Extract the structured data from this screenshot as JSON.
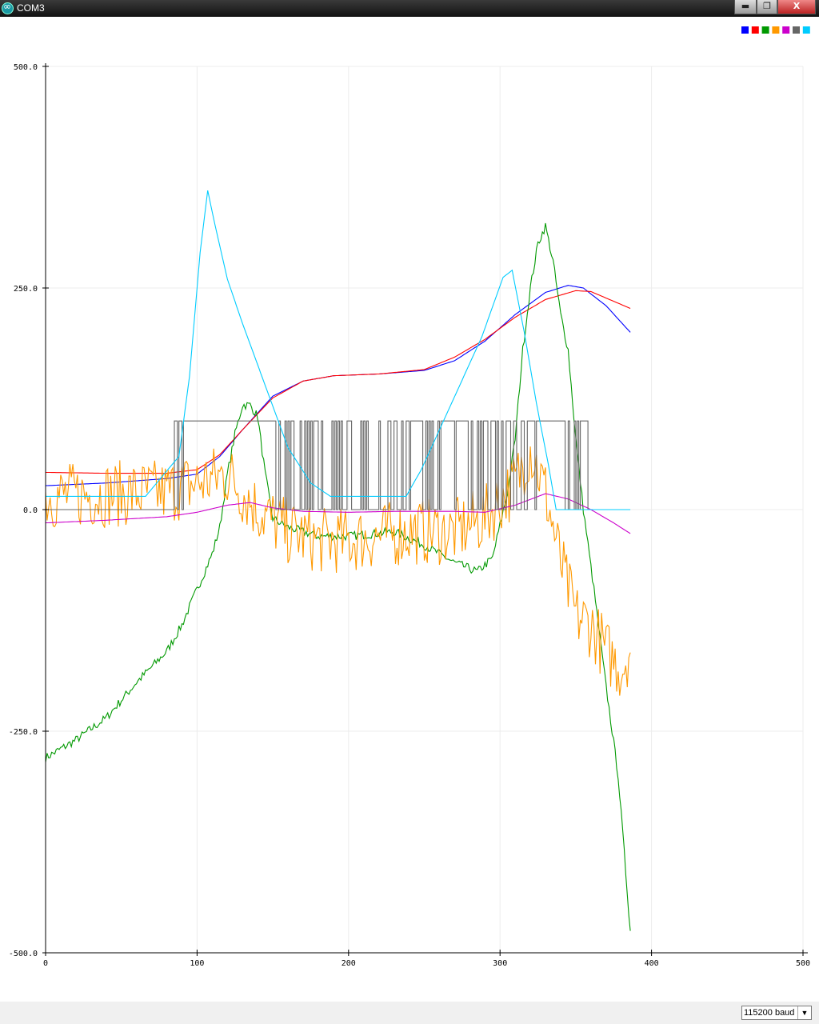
{
  "window": {
    "title": "COM3"
  },
  "title_buttons": {
    "minimize": "▬",
    "maximize": "❐",
    "close": "X"
  },
  "legend_colors": [
    "#0000ff",
    "#ff0000",
    "#009900",
    "#ff9900",
    "#cc00cc",
    "#666666",
    "#00ccff"
  ],
  "baud": {
    "selected": "115200 baud"
  },
  "chart_data": {
    "type": "line",
    "xlim": [
      0,
      500
    ],
    "ylim": [
      -500,
      500
    ],
    "x_ticks": [
      0,
      100,
      200,
      300,
      400,
      500
    ],
    "x_tick_labels": [
      "0",
      "100",
      "200",
      "300",
      "400",
      "500"
    ],
    "y_ticks": [
      500,
      250,
      0,
      -250,
      -500
    ],
    "y_tick_labels": [
      "500.0",
      "250.0",
      "0.0",
      "-250.0",
      "-500.0"
    ],
    "grid": true,
    "legend": "top-right",
    "series": [
      {
        "color": "#0000ff",
        "points": [
          [
            0,
            27
          ],
          [
            40,
            30
          ],
          [
            80,
            35
          ],
          [
            100,
            40
          ],
          [
            115,
            60
          ],
          [
            130,
            90
          ],
          [
            150,
            128
          ],
          [
            170,
            145
          ],
          [
            190,
            151
          ],
          [
            220,
            153
          ],
          [
            250,
            157
          ],
          [
            270,
            168
          ],
          [
            290,
            190
          ],
          [
            310,
            220
          ],
          [
            330,
            245
          ],
          [
            345,
            253
          ],
          [
            355,
            250
          ],
          [
            370,
            230
          ],
          [
            386,
            200
          ]
        ]
      },
      {
        "color": "#ff0000",
        "points": [
          [
            0,
            42
          ],
          [
            40,
            41
          ],
          [
            80,
            41
          ],
          [
            100,
            45
          ],
          [
            115,
            62
          ],
          [
            130,
            90
          ],
          [
            150,
            126
          ],
          [
            170,
            145
          ],
          [
            190,
            151
          ],
          [
            220,
            153
          ],
          [
            250,
            158
          ],
          [
            270,
            172
          ],
          [
            290,
            192
          ],
          [
            310,
            217
          ],
          [
            330,
            237
          ],
          [
            350,
            247
          ],
          [
            360,
            246
          ],
          [
            375,
            235
          ],
          [
            386,
            227
          ]
        ]
      },
      {
        "color": "#009900",
        "noise": 5,
        "points": [
          [
            0,
            -280
          ],
          [
            20,
            -260
          ],
          [
            40,
            -235
          ],
          [
            60,
            -195
          ],
          [
            80,
            -160
          ],
          [
            90,
            -130
          ],
          [
            100,
            -90
          ],
          [
            110,
            -50
          ],
          [
            115,
            -20
          ],
          [
            120,
            40
          ],
          [
            125,
            85
          ],
          [
            130,
            118
          ],
          [
            135,
            118
          ],
          [
            140,
            105
          ],
          [
            145,
            40
          ],
          [
            150,
            -10
          ],
          [
            160,
            -20
          ],
          [
            180,
            -30
          ],
          [
            200,
            -30
          ],
          [
            230,
            -25
          ],
          [
            250,
            -40
          ],
          [
            270,
            -60
          ],
          [
            285,
            -70
          ],
          [
            295,
            -55
          ],
          [
            305,
            20
          ],
          [
            310,
            80
          ],
          [
            315,
            180
          ],
          [
            320,
            250
          ],
          [
            325,
            300
          ],
          [
            330,
            320
          ],
          [
            335,
            280
          ],
          [
            340,
            220
          ],
          [
            345,
            180
          ],
          [
            350,
            80
          ],
          [
            355,
            0
          ],
          [
            362,
            -90
          ],
          [
            370,
            -200
          ],
          [
            378,
            -300
          ],
          [
            386,
            -475
          ]
        ]
      },
      {
        "color": "#ff9900",
        "noise": 38,
        "points": [
          [
            0,
            15
          ],
          [
            80,
            20
          ],
          [
            120,
            40
          ],
          [
            140,
            0
          ],
          [
            160,
            -25
          ],
          [
            180,
            -35
          ],
          [
            200,
            -35
          ],
          [
            240,
            -25
          ],
          [
            270,
            -25
          ],
          [
            290,
            -10
          ],
          [
            310,
            30
          ],
          [
            320,
            70
          ],
          [
            330,
            20
          ],
          [
            340,
            -60
          ],
          [
            350,
            -120
          ],
          [
            360,
            -130
          ],
          [
            370,
            -160
          ],
          [
            380,
            -180
          ],
          [
            386,
            -155
          ]
        ]
      },
      {
        "color": "#cc00cc",
        "points": [
          [
            0,
            -15
          ],
          [
            40,
            -12
          ],
          [
            80,
            -8
          ],
          [
            100,
            -3
          ],
          [
            120,
            5
          ],
          [
            135,
            8
          ],
          [
            150,
            2
          ],
          [
            170,
            -2
          ],
          [
            200,
            -3
          ],
          [
            230,
            -2
          ],
          [
            270,
            -2
          ],
          [
            290,
            -3
          ],
          [
            310,
            5
          ],
          [
            330,
            18
          ],
          [
            345,
            12
          ],
          [
            360,
            0
          ],
          [
            375,
            -15
          ],
          [
            386,
            -27
          ]
        ]
      },
      {
        "color": "#666666",
        "digital": true,
        "low": 0,
        "high": 100,
        "points": [
          [
            0,
            0
          ],
          [
            80,
            0
          ],
          [
            86,
            100
          ],
          [
            88,
            50
          ],
          [
            90,
            100
          ],
          [
            152,
            100
          ],
          [
            153,
            0
          ],
          [
            380,
            0
          ]
        ]
      },
      {
        "color": "#00ccff",
        "points": [
          [
            0,
            15
          ],
          [
            66,
            15
          ],
          [
            88,
            60
          ],
          [
            95,
            150
          ],
          [
            102,
            290
          ],
          [
            107,
            360
          ],
          [
            112,
            320
          ],
          [
            120,
            260
          ],
          [
            130,
            210
          ],
          [
            145,
            140
          ],
          [
            160,
            70
          ],
          [
            175,
            30
          ],
          [
            188,
            15
          ],
          [
            198,
            15
          ],
          [
            238,
            15
          ],
          [
            248,
            45
          ],
          [
            268,
            120
          ],
          [
            288,
            195
          ],
          [
            302,
            262
          ],
          [
            308,
            270
          ],
          [
            316,
            200
          ],
          [
            324,
            120
          ],
          [
            332,
            50
          ],
          [
            337,
            0
          ],
          [
            345,
            0
          ],
          [
            386,
            0
          ]
        ]
      }
    ]
  }
}
